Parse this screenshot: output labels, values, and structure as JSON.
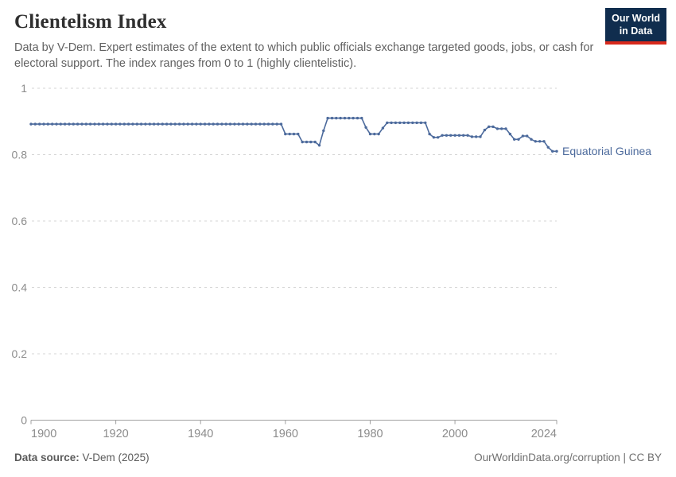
{
  "header": {
    "title": "Clientelism Index",
    "subtitle": "Data by V-Dem. Expert estimates of the extent to which public officials exchange targeted goods, jobs, or cash for electoral support. The index ranges from 0 to 1 (highly clientelistic)."
  },
  "logo": {
    "line1": "Our World",
    "line2": "in Data",
    "bg_color": "#102d4e",
    "accent_color": "#d8291c"
  },
  "chart_data": {
    "type": "line",
    "title": "Clientelism Index",
    "entity_label": "Equatorial Guinea",
    "xlim": [
      1900,
      2024
    ],
    "ylim": [
      0,
      1
    ],
    "x_ticks": [
      1900,
      1920,
      1940,
      1960,
      1980,
      2000,
      2024
    ],
    "y_ticks": [
      0,
      0.2,
      0.4,
      0.6,
      0.8,
      1
    ],
    "grid": "dashed horizontal",
    "legend_position": "right-of-line",
    "line_color": "#4c6a9c",
    "axis_color": "#a0a0a0",
    "grid_color": "#d6d6d6",
    "tick_label_color": "#8c8c8c",
    "series": [
      {
        "name": "Equatorial Guinea",
        "points": [
          [
            1900,
            0.892
          ],
          [
            1901,
            0.892
          ],
          [
            1902,
            0.892
          ],
          [
            1903,
            0.892
          ],
          [
            1904,
            0.892
          ],
          [
            1905,
            0.892
          ],
          [
            1906,
            0.892
          ],
          [
            1907,
            0.892
          ],
          [
            1908,
            0.892
          ],
          [
            1909,
            0.892
          ],
          [
            1910,
            0.892
          ],
          [
            1911,
            0.892
          ],
          [
            1912,
            0.892
          ],
          [
            1913,
            0.892
          ],
          [
            1914,
            0.892
          ],
          [
            1915,
            0.892
          ],
          [
            1916,
            0.892
          ],
          [
            1917,
            0.892
          ],
          [
            1918,
            0.892
          ],
          [
            1919,
            0.892
          ],
          [
            1920,
            0.892
          ],
          [
            1921,
            0.892
          ],
          [
            1922,
            0.892
          ],
          [
            1923,
            0.892
          ],
          [
            1924,
            0.892
          ],
          [
            1925,
            0.892
          ],
          [
            1926,
            0.892
          ],
          [
            1927,
            0.892
          ],
          [
            1928,
            0.892
          ],
          [
            1929,
            0.892
          ],
          [
            1930,
            0.892
          ],
          [
            1931,
            0.892
          ],
          [
            1932,
            0.892
          ],
          [
            1933,
            0.892
          ],
          [
            1934,
            0.892
          ],
          [
            1935,
            0.892
          ],
          [
            1936,
            0.892
          ],
          [
            1937,
            0.892
          ],
          [
            1938,
            0.892
          ],
          [
            1939,
            0.892
          ],
          [
            1940,
            0.892
          ],
          [
            1941,
            0.892
          ],
          [
            1942,
            0.892
          ],
          [
            1943,
            0.892
          ],
          [
            1944,
            0.892
          ],
          [
            1945,
            0.892
          ],
          [
            1946,
            0.892
          ],
          [
            1947,
            0.892
          ],
          [
            1948,
            0.892
          ],
          [
            1949,
            0.892
          ],
          [
            1950,
            0.892
          ],
          [
            1951,
            0.892
          ],
          [
            1952,
            0.892
          ],
          [
            1953,
            0.892
          ],
          [
            1954,
            0.892
          ],
          [
            1955,
            0.892
          ],
          [
            1956,
            0.892
          ],
          [
            1957,
            0.892
          ],
          [
            1958,
            0.892
          ],
          [
            1959,
            0.892
          ],
          [
            1960,
            0.862
          ],
          [
            1961,
            0.862
          ],
          [
            1962,
            0.862
          ],
          [
            1963,
            0.862
          ],
          [
            1964,
            0.838
          ],
          [
            1965,
            0.838
          ],
          [
            1966,
            0.838
          ],
          [
            1967,
            0.838
          ],
          [
            1968,
            0.828
          ],
          [
            1969,
            0.872
          ],
          [
            1970,
            0.91
          ],
          [
            1971,
            0.91
          ],
          [
            1972,
            0.91
          ],
          [
            1973,
            0.91
          ],
          [
            1974,
            0.91
          ],
          [
            1975,
            0.91
          ],
          [
            1976,
            0.91
          ],
          [
            1977,
            0.91
          ],
          [
            1978,
            0.91
          ],
          [
            1979,
            0.882
          ],
          [
            1980,
            0.862
          ],
          [
            1981,
            0.862
          ],
          [
            1982,
            0.862
          ],
          [
            1983,
            0.88
          ],
          [
            1984,
            0.896
          ],
          [
            1985,
            0.896
          ],
          [
            1986,
            0.896
          ],
          [
            1987,
            0.896
          ],
          [
            1988,
            0.896
          ],
          [
            1989,
            0.896
          ],
          [
            1990,
            0.896
          ],
          [
            1991,
            0.896
          ],
          [
            1992,
            0.896
          ],
          [
            1993,
            0.896
          ],
          [
            1994,
            0.862
          ],
          [
            1995,
            0.852
          ],
          [
            1996,
            0.852
          ],
          [
            1997,
            0.858
          ],
          [
            1998,
            0.858
          ],
          [
            1999,
            0.858
          ],
          [
            2000,
            0.858
          ],
          [
            2001,
            0.858
          ],
          [
            2002,
            0.858
          ],
          [
            2003,
            0.858
          ],
          [
            2004,
            0.854
          ],
          [
            2005,
            0.854
          ],
          [
            2006,
            0.854
          ],
          [
            2007,
            0.874
          ],
          [
            2008,
            0.884
          ],
          [
            2009,
            0.884
          ],
          [
            2010,
            0.878
          ],
          [
            2011,
            0.878
          ],
          [
            2012,
            0.878
          ],
          [
            2013,
            0.862
          ],
          [
            2014,
            0.846
          ],
          [
            2015,
            0.846
          ],
          [
            2016,
            0.856
          ],
          [
            2017,
            0.856
          ],
          [
            2018,
            0.846
          ],
          [
            2019,
            0.84
          ],
          [
            2020,
            0.84
          ],
          [
            2021,
            0.84
          ],
          [
            2022,
            0.822
          ],
          [
            2023,
            0.81
          ],
          [
            2024,
            0.81
          ]
        ]
      }
    ]
  },
  "footer": {
    "source_label": "Data source:",
    "source_value": "V-Dem (2025)",
    "right_text": "OurWorldinData.org/corruption | CC BY"
  }
}
